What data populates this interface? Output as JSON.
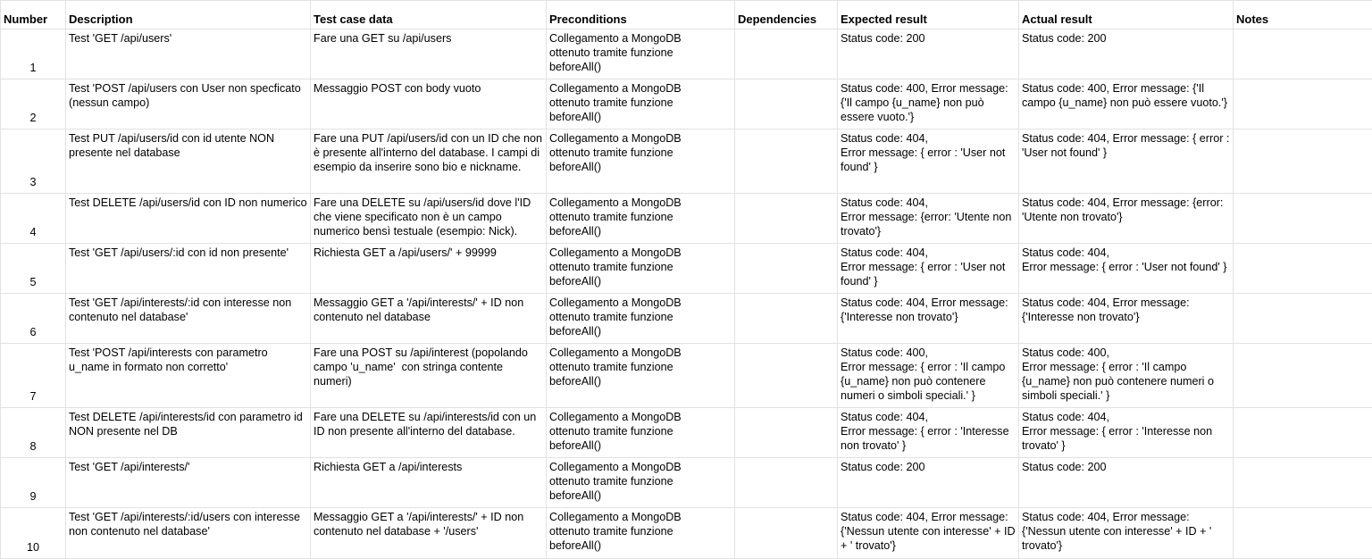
{
  "headers": {
    "number": "Number",
    "description": "Description",
    "test_case_data": "Test case data",
    "preconditions": "Preconditions",
    "dependencies": "Dependencies",
    "expected_result": "Expected result",
    "actual_result": "Actual result",
    "notes": "Notes"
  },
  "rows": [
    {
      "number": "1",
      "description": "Test 'GET /api/users'",
      "test_case_data": "Fare una GET su /api/users",
      "preconditions": "Collegamento a MongoDB\nottenuto tramite funzione\nbeforeAll()",
      "dependencies": "",
      "expected_result": "Status code: 200",
      "actual_result": "Status code: 200",
      "notes": ""
    },
    {
      "number": "2",
      "description": "Test 'POST /api/users con User non specficato (nessun campo)",
      "test_case_data": "Messaggio POST con body vuoto",
      "preconditions": "Collegamento a MongoDB\nottenuto tramite funzione\nbeforeAll()",
      "dependencies": "",
      "expected_result": "Status code: 400, Error message: {'Il campo {u_name} non può essere vuoto.'}",
      "actual_result": "Status code: 400, Error message: {'Il campo {u_name} non può essere vuoto.'}",
      "notes": ""
    },
    {
      "number": "3",
      "description": "Test PUT /api/users/id con id utente NON presente nel database",
      "test_case_data": "Fare una PUT /api/users/id con un ID che non è presente all'interno del database. I campi di esempio da inserire sono bio e nickname.",
      "preconditions": "Collegamento a MongoDB\nottenuto tramite funzione\nbeforeAll()",
      "dependencies": "",
      "expected_result": "Status code: 404,\nError message: { error : 'User not found' }",
      "actual_result": "Status code: 404, Error message: { error : 'User not found' }",
      "notes": ""
    },
    {
      "number": "4",
      "description": "Test DELETE /api/users/id con ID non numerico",
      "test_case_data": "Fare una DELETE su /api/users/id dove l'ID che viene specificato non è un campo numerico bensì testuale (esempio: Nick).",
      "preconditions": "Collegamento a MongoDB\nottenuto tramite funzione\nbeforeAll()",
      "dependencies": "",
      "expected_result": "Status code: 404,\nError message: {error: 'Utente non trovato'}",
      "actual_result": "Status code: 404, Error message: {error: 'Utente non trovato'}",
      "notes": ""
    },
    {
      "number": "5",
      "description": "Test 'GET /api/users/:id con id non presente'",
      "test_case_data": "Richiesta GET a /api/users/' + 99999",
      "preconditions": "Collegamento a MongoDB\nottenuto tramite funzione\nbeforeAll()",
      "dependencies": "",
      "expected_result": "Status code: 404,\nError message: { error : 'User not found' }",
      "actual_result": "Status code: 404,\nError message: { error : 'User not found' }",
      "notes": ""
    },
    {
      "number": "6",
      "description": "Test 'GET /api/interests/:id con interesse non contenuto nel database'",
      "test_case_data": "Messaggio GET a '/api/interests/' + ID non contenuto nel database",
      "preconditions": "Collegamento a MongoDB\nottenuto tramite funzione\nbeforeAll()",
      "dependencies": "",
      "expected_result": "Status code: 404, Error message: {'Interesse non trovato'}",
      "actual_result": "Status code: 404, Error message: {'Interesse non trovato'}",
      "notes": ""
    },
    {
      "number": "7",
      "description": "Test 'POST /api/interests con parametro u_name in formato non corretto'",
      "test_case_data": "Fare una POST su /api/interest (popolando campo 'u_name'  con stringa contente numeri)",
      "preconditions": "Collegamento a MongoDB\nottenuto tramite funzione\nbeforeAll()",
      "dependencies": "",
      "expected_result": "Status code: 400,\nError message: { error : 'Il campo {u_name} non può contenere numeri o simboli speciali.' }",
      "actual_result": "Status code: 400,\nError message: { error : 'Il campo {u_name} non può contenere numeri o simboli speciali.' }",
      "notes": ""
    },
    {
      "number": "8",
      "description": "Test DELETE /api/interests/id con parametro id NON presente nel DB",
      "test_case_data": "Fare una DELETE su /api/interests/id con un ID non presente all'interno del database.",
      "preconditions": "Collegamento a MongoDB\nottenuto tramite funzione\nbeforeAll()",
      "dependencies": "",
      "expected_result": "Status code: 404,\nError message: { error : 'Interesse non trovato' }",
      "actual_result": "Status code: 404,\nError message: { error : 'Interesse non trovato' }",
      "notes": ""
    },
    {
      "number": "9",
      "description": "Test 'GET /api/interests/'",
      "test_case_data": "Richiesta GET a /api/interests",
      "preconditions": "Collegamento a MongoDB\nottenuto tramite funzione\nbeforeAll()",
      "dependencies": "",
      "expected_result": "Status code: 200",
      "actual_result": "Status code: 200",
      "notes": ""
    },
    {
      "number": "10",
      "description": "Test 'GET /api/interests/:id/users con interesse non contenuto nel database'",
      "test_case_data": "Messaggio GET a '/api/interests/' + ID non contenuto nel database + '/users'",
      "preconditions": "Collegamento a MongoDB\nottenuto tramite funzione\nbeforeAll()",
      "dependencies": "",
      "expected_result": "Status code: 404, Error message: {'Nessun utente con interesse' + ID + ' trovato'}",
      "actual_result": "Status code: 404, Error message: {'Nessun utente con interesse' + ID + ' trovato'}",
      "notes": ""
    }
  ]
}
